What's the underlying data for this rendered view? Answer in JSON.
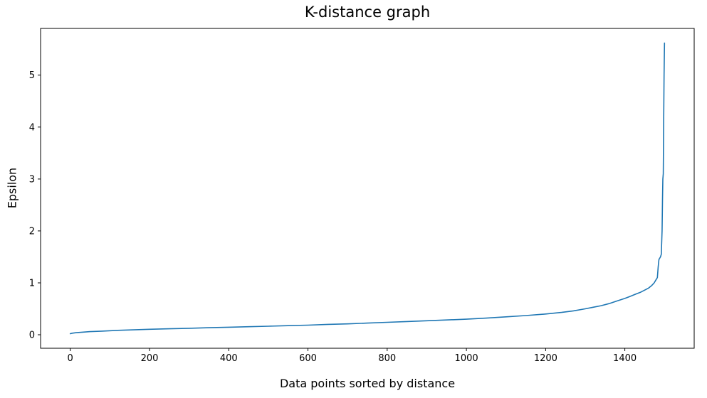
{
  "chart_data": {
    "type": "line",
    "title": "K-distance graph",
    "xlabel": "Data points sorted by distance",
    "ylabel": "Epsilon",
    "xlim": [
      -75,
      1575
    ],
    "ylim": [
      -0.26,
      5.9
    ],
    "xticks": [
      0,
      200,
      400,
      600,
      800,
      1000,
      1200,
      1400
    ],
    "yticks": [
      0,
      1,
      2,
      3,
      4,
      5
    ],
    "grid": false,
    "legend": "none",
    "line_color": "#1f77b4",
    "series": [
      {
        "name": "k-distance",
        "x": [
          0,
          5,
          15,
          30,
          50,
          80,
          120,
          160,
          200,
          250,
          300,
          350,
          400,
          450,
          500,
          550,
          600,
          650,
          700,
          750,
          800,
          850,
          900,
          950,
          1000,
          1050,
          1100,
          1150,
          1200,
          1240,
          1270,
          1300,
          1320,
          1340,
          1360,
          1380,
          1400,
          1410,
          1420,
          1430,
          1440,
          1450,
          1460,
          1468,
          1474,
          1478,
          1482,
          1484,
          1486,
          1490,
          1492,
          1494,
          1495,
          1496,
          1497,
          1498,
          1499,
          1500
        ],
        "y": [
          0.02,
          0.03,
          0.04,
          0.05,
          0.06,
          0.07,
          0.085,
          0.095,
          0.105,
          0.115,
          0.125,
          0.135,
          0.145,
          0.155,
          0.165,
          0.175,
          0.185,
          0.2,
          0.21,
          0.225,
          0.24,
          0.255,
          0.27,
          0.285,
          0.3,
          0.32,
          0.345,
          0.37,
          0.4,
          0.43,
          0.46,
          0.5,
          0.53,
          0.56,
          0.6,
          0.65,
          0.7,
          0.73,
          0.76,
          0.79,
          0.82,
          0.86,
          0.9,
          0.95,
          1.0,
          1.05,
          1.1,
          1.3,
          1.45,
          1.5,
          1.55,
          2.0,
          2.6,
          3.0,
          3.1,
          4.2,
          5.0,
          5.62
        ]
      }
    ]
  }
}
